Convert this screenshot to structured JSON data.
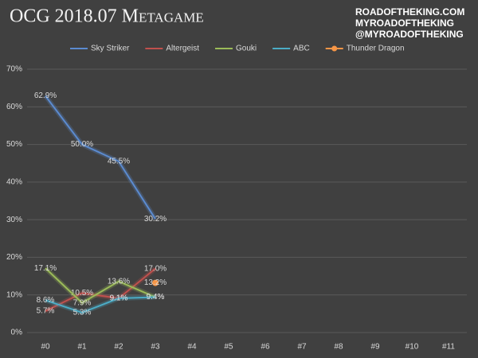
{
  "chart_data": {
    "type": "line",
    "title": "OCG 2018.07 Metagame",
    "annotations": [
      "ROADOFTHEKING.COM",
      "MYROADOFTHEKING",
      "@MYROADOFTHEKING"
    ],
    "categories": [
      "#0",
      "#1",
      "#2",
      "#3",
      "#4",
      "#5",
      "#6",
      "#7",
      "#8",
      "#9",
      "#10",
      "#11"
    ],
    "series": [
      {
        "name": "Sky Striker",
        "color": "#5b8bd0",
        "values": [
          62.9,
          50.0,
          45.5,
          30.2,
          null,
          null,
          null,
          null,
          null,
          null,
          null,
          null
        ],
        "value_labels": [
          "62.9%",
          "50.0%",
          "45.5%",
          "30.2%",
          null,
          null,
          null,
          null,
          null,
          null,
          null,
          null
        ]
      },
      {
        "name": "Altergeist",
        "color": "#c0504d",
        "values": [
          5.7,
          10.5,
          9.1,
          17.0,
          null,
          null,
          null,
          null,
          null,
          null,
          null,
          null
        ],
        "value_labels": [
          "5.7%",
          "10.5%",
          "9.1%",
          "17.0%",
          null,
          null,
          null,
          null,
          null,
          null,
          null,
          null
        ]
      },
      {
        "name": "Gouki",
        "color": "#9bbb59",
        "values": [
          17.1,
          7.9,
          13.6,
          9.4,
          null,
          null,
          null,
          null,
          null,
          null,
          null,
          null
        ],
        "value_labels": [
          "17.1%",
          "7.9%",
          "13.6%",
          "9.4%",
          null,
          null,
          null,
          null,
          null,
          null,
          null,
          null
        ]
      },
      {
        "name": "ABC",
        "color": "#4bacc6",
        "values": [
          8.6,
          5.3,
          9.1,
          9.4,
          null,
          null,
          null,
          null,
          null,
          null,
          null,
          null
        ],
        "value_labels": [
          "8.6%",
          "5.3%",
          "9.1%",
          "9.4%",
          null,
          null,
          null,
          null,
          null,
          null,
          null,
          null
        ]
      },
      {
        "name": "Thunder Dragon",
        "color": "#f79646",
        "marker": "circle",
        "values": [
          null,
          null,
          null,
          13.2,
          null,
          null,
          null,
          null,
          null,
          null,
          null,
          null
        ],
        "value_labels": [
          null,
          null,
          null,
          "13.2%",
          null,
          null,
          null,
          null,
          null,
          null,
          null,
          null
        ]
      }
    ],
    "ylim": [
      0,
      70
    ],
    "yticks": [
      {
        "value": 0,
        "label": "0%"
      },
      {
        "value": 10,
        "label": "10%"
      },
      {
        "value": 20,
        "label": "20%"
      },
      {
        "value": 30,
        "label": "30%"
      },
      {
        "value": 40,
        "label": "40%"
      },
      {
        "value": 50,
        "label": "50%"
      },
      {
        "value": 60,
        "label": "60%"
      },
      {
        "value": 70,
        "label": "70%"
      }
    ],
    "grid": true,
    "legend": "top",
    "background": "#404040"
  }
}
